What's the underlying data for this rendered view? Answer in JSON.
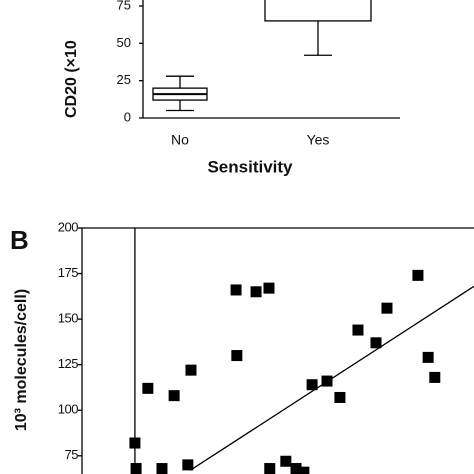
{
  "chart_data": [
    {
      "type": "box",
      "ylabel": "CD20 (×10",
      "xlabel": "Sensitivity",
      "categories": [
        "No",
        "Yes"
      ],
      "boxes": [
        {
          "min": 5,
          "q1": 12,
          "median": 16,
          "q3": 20,
          "max": 28
        },
        {
          "min": 42,
          "q1": 65,
          "median": null,
          "q3": null,
          "max": null
        }
      ],
      "ylim": [
        0,
        79
      ],
      "yticks": [
        0,
        25,
        50,
        75
      ]
    },
    {
      "type": "scatter",
      "panel": "B",
      "ylabel": "10³ molecules/cell)",
      "x": [
        13.5,
        13.8,
        16.8,
        20.4,
        23.5,
        27,
        27.8,
        39.3,
        39.5,
        44.4,
        47.7,
        47.9,
        52,
        54.6,
        56.6,
        58.7,
        62.5,
        65.8,
        70.4,
        75,
        77.8,
        85.7,
        88.3,
        90
      ],
      "values": [
        82,
        68,
        112,
        68,
        108,
        70,
        122,
        166,
        130,
        165,
        167,
        68,
        72,
        68,
        66,
        114,
        116,
        107,
        144,
        137,
        156,
        174,
        129,
        118
      ],
      "fit": {
        "x": [
          27.6,
          100
        ],
        "y": [
          67,
          168
        ]
      },
      "vline": 13.5,
      "xlim": [
        0,
        100
      ],
      "ylim": [
        65,
        200
      ],
      "yticks": [
        75,
        100,
        125,
        150,
        175,
        200
      ],
      "color": "#000000"
    }
  ]
}
